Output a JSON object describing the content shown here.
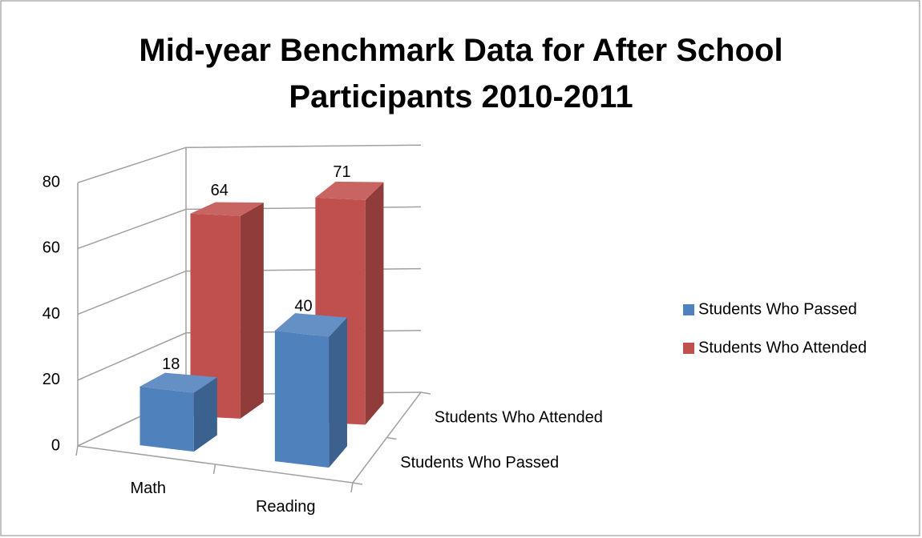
{
  "chart_data": {
    "type": "bar3d",
    "title": "Mid-year Benchmark Data for After School Participants 2010-2011",
    "categories": [
      "Math",
      "Reading"
    ],
    "series": [
      {
        "name": "Students Who Passed",
        "color": "#4f81bd",
        "values": [
          18,
          40
        ]
      },
      {
        "name": "Students Who Attended",
        "color": "#c0504d",
        "values": [
          64,
          71
        ]
      }
    ],
    "ylim": [
      0,
      80
    ],
    "yticks": [
      0,
      20,
      40,
      60,
      80
    ],
    "grid": true,
    "legend": "right"
  }
}
